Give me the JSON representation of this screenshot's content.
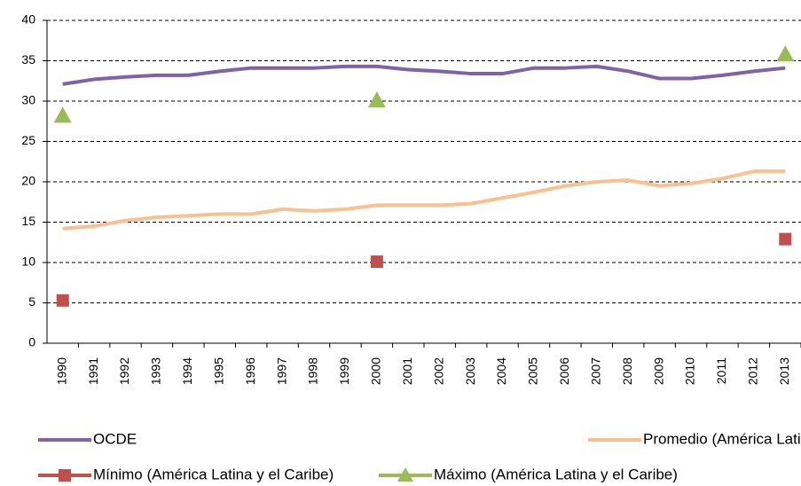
{
  "chart_data": {
    "type": "line",
    "categories": [
      "1990",
      "1991",
      "1992",
      "1993",
      "1994",
      "1995",
      "1996",
      "1997",
      "1998",
      "1999",
      "2000",
      "2001",
      "2002",
      "2003",
      "2004",
      "2005",
      "2006",
      "2007",
      "2008",
      "2009",
      "2010",
      "2011",
      "2012",
      "2013"
    ],
    "series": [
      {
        "name": "OCDE",
        "color": "#7f62a8",
        "marker": "none",
        "line": true,
        "values": [
          32.1,
          32.7,
          33.0,
          33.2,
          33.2,
          33.7,
          34.1,
          34.1,
          34.1,
          34.3,
          34.3,
          33.9,
          33.7,
          33.4,
          33.4,
          34.1,
          34.1,
          34.3,
          33.7,
          32.8,
          32.8,
          33.2,
          33.7,
          34.1
        ]
      },
      {
        "name": "Promedio (América Latina y el Caribe)",
        "color": "#fac090",
        "marker": "none",
        "line": true,
        "values": [
          14.2,
          14.5,
          15.2,
          15.6,
          15.8,
          16.0,
          16.0,
          16.6,
          16.4,
          16.6,
          17.1,
          17.1,
          17.1,
          17.3,
          18.0,
          18.7,
          19.5,
          20.0,
          20.2,
          19.5,
          19.8,
          20.4,
          21.3,
          21.3
        ]
      },
      {
        "name": "Mínimo (América Latina y el Caribe)",
        "color": "#c0504d",
        "marker": "square",
        "line": false,
        "values": [
          5.3,
          null,
          null,
          null,
          null,
          null,
          null,
          null,
          null,
          null,
          10.1,
          null,
          null,
          null,
          null,
          null,
          null,
          null,
          null,
          null,
          null,
          null,
          null,
          12.9
        ]
      },
      {
        "name": "Máximo (América Latina y el Caribe)",
        "color": "#9bbb59",
        "marker": "triangle",
        "line": false,
        "values": [
          28.2,
          null,
          null,
          null,
          null,
          null,
          null,
          null,
          null,
          null,
          30.1,
          null,
          null,
          null,
          null,
          null,
          null,
          null,
          null,
          null,
          null,
          null,
          null,
          35.8
        ]
      }
    ],
    "ylim": [
      0,
      40
    ],
    "yticks": [
      0,
      5,
      10,
      15,
      20,
      25,
      30,
      35,
      40
    ],
    "grid": true,
    "legend": "bottom"
  }
}
